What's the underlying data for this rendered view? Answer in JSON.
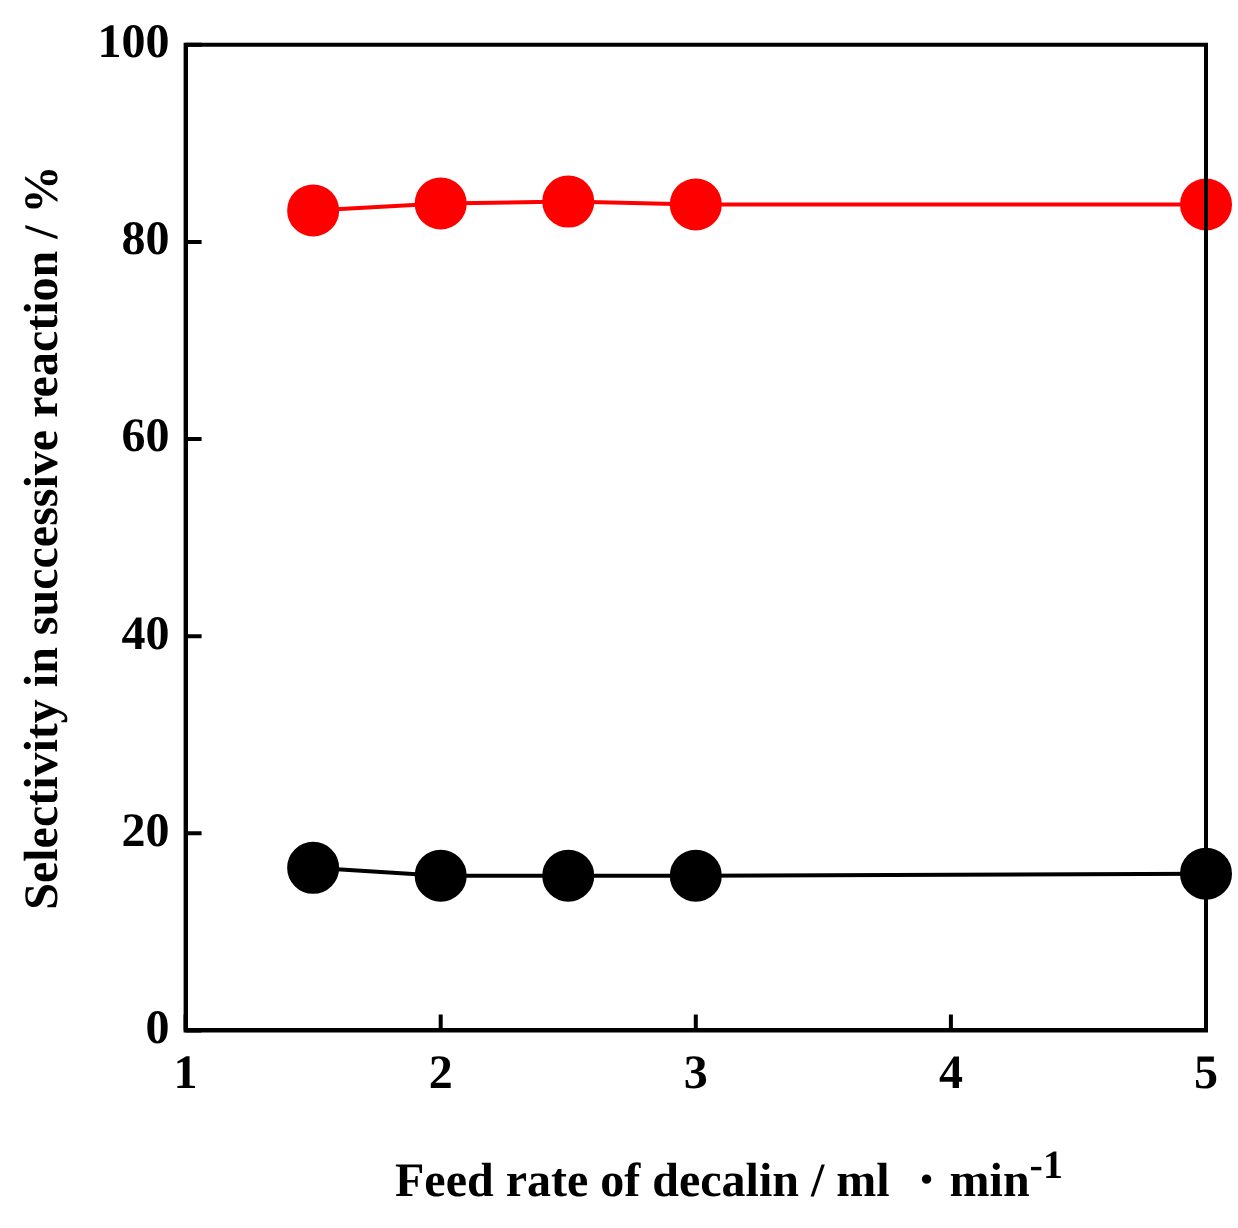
{
  "chart_data": {
    "type": "line",
    "xlabel": "Feed rate of decalin / ml ・min$^{-1}$",
    "ylabel": "Selectivity in successive reaction / %",
    "x": [
      1.5,
      2,
      2.5,
      3,
      5
    ],
    "series": [
      {
        "color": "#ff0000",
        "values": [
          83.2,
          83.9,
          84.1,
          83.8,
          83.8
        ]
      },
      {
        "color": "#000000",
        "values": [
          16.5,
          15.7,
          15.7,
          15.7,
          15.9
        ]
      }
    ],
    "xlim": [
      1,
      5
    ],
    "xticks": [
      1,
      2,
      3,
      4,
      5
    ],
    "ylim": [
      0,
      100
    ],
    "yticks": [
      0,
      20,
      40,
      60,
      80,
      100
    ],
    "grid": false,
    "legend": false,
    "marker": "circle",
    "line_style": "solid"
  }
}
